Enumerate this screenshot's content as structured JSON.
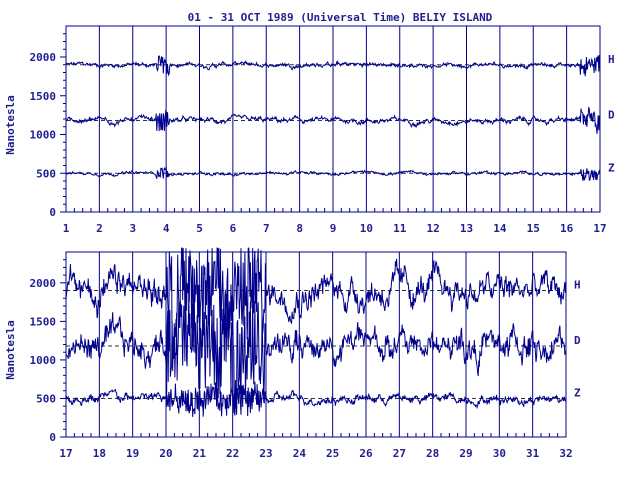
{
  "chart_data": {
    "type": "line",
    "title": "01 - 31 OCT 1989 (Universal Time) BELIY ISLAND",
    "ylabel": "Nanotesla",
    "color": "#00008b",
    "panels": [
      {
        "xlim": [
          1,
          17
        ],
        "ylim": [
          0,
          2400
        ],
        "xticks": [
          "1",
          "2",
          "3",
          "4",
          "5",
          "6",
          "7",
          "8",
          "9",
          "10",
          "11",
          "12",
          "13",
          "14",
          "15",
          "16",
          "17"
        ],
        "yticks": [
          "0",
          "500",
          "1000",
          "1500",
          "2000"
        ],
        "series": [
          {
            "name": "H",
            "baseline": 1900,
            "amplitude": 60
          },
          {
            "name": "D",
            "baseline": 1180,
            "amplitude": 70
          },
          {
            "name": "Z",
            "baseline": 500,
            "amplitude": 40
          }
        ]
      },
      {
        "xlim": [
          17,
          32
        ],
        "ylim": [
          0,
          2400
        ],
        "xticks": [
          "17",
          "18",
          "19",
          "20",
          "21",
          "22",
          "23",
          "24",
          "25",
          "26",
          "27",
          "28",
          "29",
          "30",
          "31",
          "32"
        ],
        "yticks": [
          "0",
          "500",
          "1000",
          "1500",
          "2000"
        ],
        "series": [
          {
            "name": "H",
            "baseline": 1900,
            "amplitude": 400
          },
          {
            "name": "D",
            "baseline": 1180,
            "amplitude": 400
          },
          {
            "name": "Z",
            "baseline": 500,
            "amplitude": 120
          }
        ]
      }
    ]
  }
}
